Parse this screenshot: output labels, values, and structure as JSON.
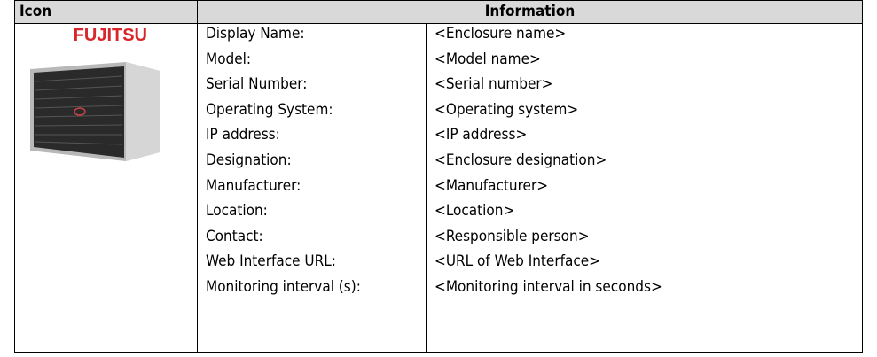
{
  "header": {
    "icon": "Icon",
    "information": "Information"
  },
  "icon_logo": "FUJITSU",
  "rows": [
    [
      "Display Name:",
      "<Enclosure name>"
    ],
    [
      "Model:",
      "<Model name>"
    ],
    [
      "Serial Number:",
      "<Serial number>"
    ],
    [
      "Operating System:",
      "<Operating system>"
    ],
    [
      "IP address:",
      "<IP address>"
    ],
    [
      "Designation:",
      "<Enclosure designation>"
    ],
    [
      "Manufacturer:",
      "<Manufacturer>"
    ],
    [
      "Location:",
      "<Location>"
    ],
    [
      "Contact:",
      "<Responsible person>"
    ],
    [
      "Web Interface URL:",
      "<URL of Web Interface>"
    ],
    [
      "Monitoring interval (s):",
      "<Monitoring interval in seconds>"
    ]
  ]
}
